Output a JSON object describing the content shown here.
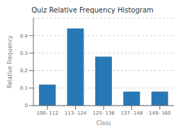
{
  "chart_data": {
    "type": "bar",
    "title": "Quiz Relative Frequency Histogram",
    "xlabel": "Class",
    "ylabel": "Relative Frequency",
    "categories": [
      "100- 112",
      "113- 124",
      "125- 136",
      "137- 148",
      "149- 160"
    ],
    "values": [
      0.12,
      0.44,
      0.28,
      0.08,
      0.08
    ],
    "color": "#2878b5",
    "ylim": [
      0,
      0.5
    ],
    "yticks": [
      0,
      0.1,
      0.2,
      0.3,
      0.4
    ],
    "grid": true
  }
}
